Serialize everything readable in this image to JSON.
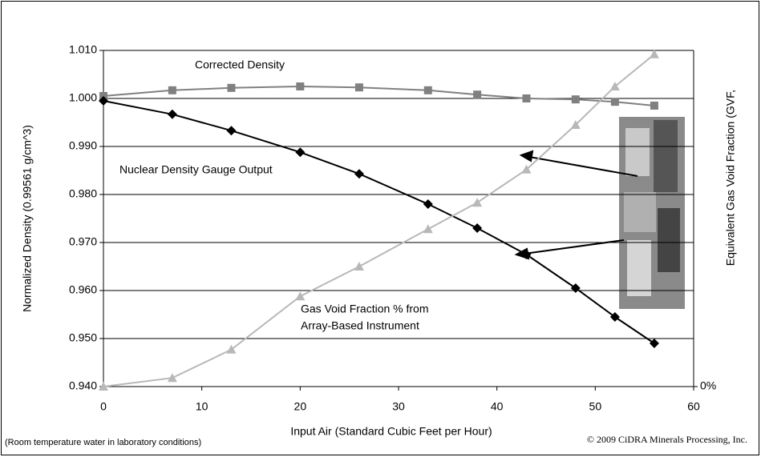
{
  "chart_data": {
    "type": "line",
    "x_label": "Input Air (Standard Cubic Feet per Hour)",
    "y_label": "Normalized Density (0.99561 g/cm^3)",
    "y2_label": "Equivalent Gas Void Fraction (GVF,",
    "x": [
      0,
      7,
      13,
      20,
      26,
      33,
      38,
      43,
      48,
      52,
      56
    ],
    "xlim": [
      0,
      60
    ],
    "xticks": [
      0,
      10,
      20,
      30,
      40,
      50,
      60
    ],
    "ylim": [
      0.94,
      1.01
    ],
    "yticks": [
      {
        "value": 0.94,
        "label": "0.940"
      },
      {
        "value": 0.95,
        "label": "0.950"
      },
      {
        "value": 0.96,
        "label": "0.960"
      },
      {
        "value": 0.97,
        "label": "0.970"
      },
      {
        "value": 0.98,
        "label": "0.980"
      },
      {
        "value": 0.99,
        "label": "0.990"
      },
      {
        "value": 1.0,
        "label": "1.000"
      },
      {
        "value": 1.01,
        "label": "1.010"
      }
    ],
    "y2lim": [
      0,
      7
    ],
    "y2ticks": [
      {
        "value": 0,
        "label": "0%"
      }
    ],
    "grid": true,
    "series": [
      {
        "color": "#808080",
        "marker": "square",
        "values": [
          1.0005,
          1.0017,
          1.0022,
          1.0025,
          1.0023,
          1.0017,
          1.0008,
          1.0,
          0.9998,
          0.9993,
          0.9985
        ]
      },
      {
        "color": "#000000",
        "marker": "diamond",
        "values": [
          0.9995,
          0.9967,
          0.9933,
          0.9888,
          0.9843,
          0.978,
          0.973,
          0.9675,
          0.9605,
          0.9545,
          0.949
        ]
      },
      {
        "color": "#b8b8b8",
        "marker": "triangle",
        "axis": "y2",
        "values": [
          0,
          0.18,
          0.77,
          1.88,
          2.5,
          3.28,
          3.83,
          4.52,
          5.45,
          6.25,
          6.92
        ]
      }
    ],
    "annotations": [
      "Corrected Density",
      "Nuclear Density Gauge Output",
      "Gas Void Fraction % from",
      "Array-Based Instrument"
    ],
    "footnote": "(Room temperature water in laboratory conditions)",
    "copyright": "© 2009 CiDRA Minerals Processing, Inc."
  }
}
